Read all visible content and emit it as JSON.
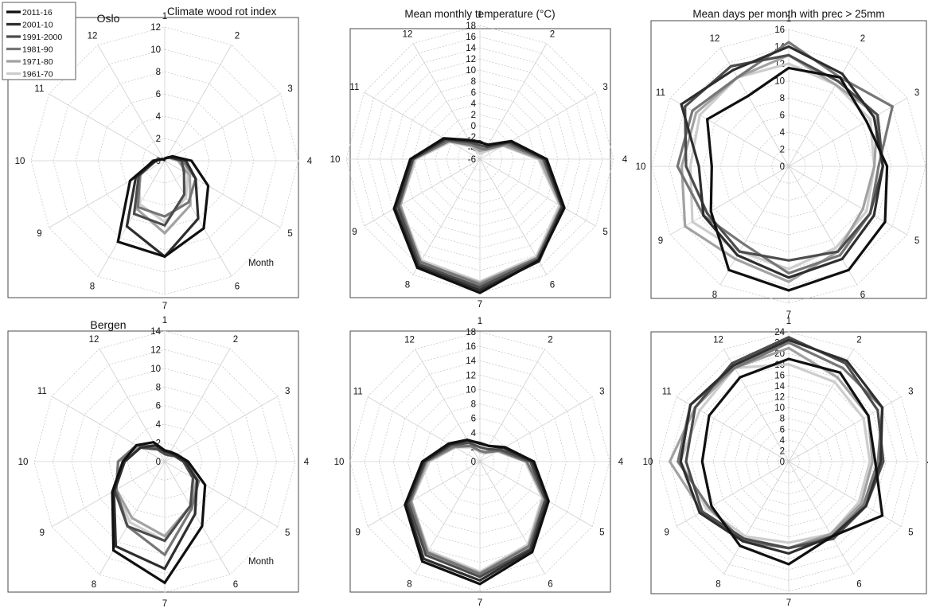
{
  "legend": [
    "2011-16",
    "2001-10",
    "1991-2000",
    "1981-90",
    "1971-80",
    "1961-70"
  ],
  "colors": [
    "#101010",
    "#2e2e2e",
    "#4c4c4c",
    "#767676",
    "#a2a2a2",
    "#cdcdcd"
  ],
  "month_axis_label": "Month",
  "chart_data": [
    {
      "type": "radar",
      "city": "Oslo",
      "title": "Climate wood rot index",
      "xlabel": "Month",
      "categories": [
        "1",
        "2",
        "3",
        "4",
        "5",
        "6",
        "7",
        "8",
        "9",
        "10",
        "11",
        "12"
      ],
      "rlim": [
        0,
        12
      ],
      "ticks": [
        0,
        2,
        4,
        6,
        8,
        10,
        12
      ],
      "grid": true,
      "series": [
        {
          "name": "2011-16",
          "values": [
            0.2,
            0.3,
            0.8,
            2.4,
            4.5,
            7.0,
            8.6,
            8.4,
            3.6,
            1.0,
            0.3,
            0.1
          ]
        },
        {
          "name": "2001-10",
          "values": [
            0.2,
            0.3,
            0.6,
            1.9,
            3.2,
            6.0,
            8.6,
            6.8,
            3.0,
            0.8,
            0.3,
            0.1
          ]
        },
        {
          "name": "1991-2000",
          "values": [
            0.2,
            0.3,
            0.6,
            1.5,
            2.0,
            3.5,
            5.8,
            5.5,
            2.7,
            0.9,
            0.3,
            0.1
          ]
        },
        {
          "name": "1981-90",
          "values": [
            0.2,
            0.3,
            0.6,
            1.6,
            3.2,
            4.3,
            5.0,
            4.8,
            2.6,
            1.1,
            0.3,
            0.1
          ]
        },
        {
          "name": "1971-80",
          "values": [
            0.2,
            0.3,
            0.5,
            1.2,
            2.6,
            4.6,
            6.5,
            5.0,
            2.5,
            0.8,
            0.3,
            0.1
          ]
        },
        {
          "name": "1961-70",
          "values": [
            0.2,
            0.3,
            0.5,
            1.2,
            2.4,
            3.8,
            5.5,
            4.5,
            2.6,
            0.8,
            0.3,
            0.1
          ]
        }
      ]
    },
    {
      "type": "radar",
      "city": "",
      "title": "Mean monthly temperature (°C)",
      "xlabel": "",
      "categories": [
        "1",
        "2",
        "3",
        "4",
        "5",
        "6",
        "7",
        "8",
        "9",
        "10",
        "11",
        "12"
      ],
      "rlim": [
        -6,
        18
      ],
      "ticks": [
        -6,
        -4,
        -2,
        0,
        2,
        4,
        6,
        8,
        10,
        12,
        14,
        16,
        18
      ],
      "grid": true,
      "series": [
        {
          "name": "2011-16",
          "values": [
            -3.0,
            -3.0,
            0.5,
            6.0,
            11.5,
            15.0,
            18.0,
            16.5,
            11.8,
            6.5,
            1.5,
            -2.0
          ]
        },
        {
          "name": "2001-10",
          "values": [
            -2.8,
            -3.2,
            0.3,
            5.8,
            11.2,
            15.2,
            17.5,
            16.2,
            11.5,
            6.3,
            1.3,
            -2.2
          ]
        },
        {
          "name": "1991-2000",
          "values": [
            -3.5,
            -3.5,
            0.0,
            5.5,
            11.0,
            14.8,
            17.0,
            15.8,
            11.0,
            6.0,
            1.0,
            -2.5
          ]
        },
        {
          "name": "1981-90",
          "values": [
            -4.0,
            -4.0,
            -0.5,
            5.3,
            11.0,
            14.5,
            16.5,
            15.3,
            10.8,
            6.0,
            0.5,
            -3.0
          ]
        },
        {
          "name": "1971-80",
          "values": [
            -4.5,
            -4.0,
            -1.0,
            4.8,
            10.8,
            14.5,
            16.2,
            15.5,
            10.5,
            5.8,
            0.5,
            -3.2
          ]
        },
        {
          "name": "1961-70",
          "values": [
            -5.0,
            -4.5,
            -1.2,
            4.5,
            10.5,
            14.2,
            16.0,
            15.0,
            10.5,
            5.5,
            0.2,
            -3.5
          ]
        }
      ]
    },
    {
      "type": "radar",
      "city": "",
      "title": "Mean days per month with prec > 25mm",
      "xlabel": "",
      "categories": [
        "1",
        "2",
        "3",
        "4",
        "5",
        "6",
        "7",
        "8",
        "9",
        "10",
        "11",
        "12"
      ],
      "rlim": [
        0,
        16
      ],
      "ticks": [
        0,
        2,
        4,
        6,
        8,
        10,
        12,
        14,
        16
      ],
      "grid": true,
      "series": [
        {
          "name": "2011-16",
          "values": [
            11.5,
            12.0,
            10.5,
            11.5,
            13.0,
            14.0,
            14.5,
            14.0,
            10.5,
            9.0,
            11.0,
            9.5
          ]
        },
        {
          "name": "2001-10",
          "values": [
            14.0,
            12.5,
            11.5,
            11.0,
            11.5,
            12.5,
            13.0,
            12.0,
            11.5,
            10.5,
            14.5,
            13.0
          ]
        },
        {
          "name": "1991-2000",
          "values": [
            13.0,
            11.5,
            12.0,
            11.0,
            11.0,
            11.5,
            11.0,
            11.5,
            11.0,
            12.0,
            14.0,
            13.5
          ]
        },
        {
          "name": "1981-90",
          "values": [
            14.5,
            12.0,
            14.0,
            10.5,
            11.0,
            12.0,
            12.5,
            10.5,
            11.5,
            13.0,
            13.0,
            12.0
          ]
        },
        {
          "name": "1971-80",
          "values": [
            13.0,
            11.0,
            12.0,
            10.0,
            10.0,
            11.5,
            13.5,
            12.5,
            14.0,
            12.5,
            12.5,
            12.0
          ]
        },
        {
          "name": "1961-70",
          "values": [
            12.0,
            11.0,
            11.0,
            10.0,
            10.5,
            11.0,
            12.0,
            11.5,
            13.0,
            11.5,
            12.0,
            12.0
          ]
        }
      ]
    },
    {
      "type": "radar",
      "city": "Bergen",
      "title": "",
      "xlabel": "Month",
      "categories": [
        "1",
        "2",
        "3",
        "4",
        "5",
        "6",
        "7",
        "8",
        "9",
        "10",
        "11",
        "12"
      ],
      "rlim": [
        0,
        14
      ],
      "ticks": [
        0,
        2,
        4,
        6,
        8,
        10,
        12,
        14
      ],
      "grid": true,
      "series": [
        {
          "name": "2011-16",
          "values": [
            1.2,
            1.2,
            1.5,
            2.5,
            5.0,
            8.0,
            13.0,
            11.0,
            6.5,
            4.5,
            3.5,
            2.4
          ]
        },
        {
          "name": "2001-10",
          "values": [
            1.1,
            1.1,
            1.3,
            2.2,
            4.0,
            6.5,
            11.5,
            10.5,
            6.3,
            4.3,
            3.0,
            2.0
          ]
        },
        {
          "name": "1991-2000",
          "values": [
            0.8,
            0.8,
            1.2,
            2.0,
            3.5,
            5.5,
            8.5,
            8.0,
            6.2,
            4.3,
            3.0,
            1.5
          ]
        },
        {
          "name": "1981-90",
          "values": [
            0.8,
            0.9,
            1.3,
            2.0,
            4.2,
            5.8,
            10.0,
            8.0,
            6.0,
            5.0,
            3.5,
            1.8
          ]
        },
        {
          "name": "1971-80",
          "values": [
            1.0,
            1.0,
            1.5,
            2.4,
            4.0,
            5.5,
            8.0,
            7.0,
            6.0,
            5.0,
            3.2,
            2.0
          ]
        },
        {
          "name": "1961-70",
          "values": [
            1.0,
            1.0,
            1.3,
            2.0,
            3.8,
            5.5,
            8.5,
            7.5,
            6.0,
            5.0,
            3.0,
            2.0
          ]
        }
      ]
    },
    {
      "type": "radar",
      "city": "",
      "title": "",
      "xlabel": "",
      "categories": [
        "1",
        "2",
        "3",
        "4",
        "5",
        "6",
        "7",
        "8",
        "9",
        "10",
        "11",
        "12"
      ],
      "rlim": [
        0,
        18
      ],
      "ticks": [
        0,
        2,
        4,
        6,
        8,
        10,
        12,
        14,
        16,
        18
      ],
      "grid": true,
      "series": [
        {
          "name": "2011-16",
          "values": [
            2.5,
            2.5,
            4.0,
            7.5,
            11.0,
            14.5,
            17.0,
            16.0,
            12.0,
            8.0,
            5.0,
            3.5
          ]
        },
        {
          "name": "2001-10",
          "values": [
            2.6,
            2.5,
            3.8,
            7.3,
            10.8,
            14.2,
            16.5,
            15.6,
            11.8,
            7.8,
            4.8,
            3.4
          ]
        },
        {
          "name": "1991-2000",
          "values": [
            2.0,
            2.0,
            3.3,
            7.0,
            10.5,
            14.0,
            16.0,
            15.0,
            11.5,
            7.6,
            4.6,
            3.0
          ]
        },
        {
          "name": "1981-90",
          "values": [
            1.5,
            1.5,
            3.0,
            6.5,
            10.5,
            13.6,
            15.6,
            14.6,
            11.2,
            7.5,
            4.2,
            2.5
          ]
        },
        {
          "name": "1971-80",
          "values": [
            1.5,
            1.5,
            3.0,
            6.5,
            10.2,
            13.5,
            15.5,
            14.5,
            11.0,
            7.3,
            4.0,
            2.5
          ]
        },
        {
          "name": "1961-70",
          "values": [
            1.3,
            1.3,
            2.8,
            6.3,
            10.0,
            13.3,
            15.3,
            14.3,
            11.0,
            7.0,
            4.0,
            2.3
          ]
        }
      ]
    },
    {
      "type": "radar",
      "city": "",
      "title": "",
      "xlabel": "",
      "categories": [
        "1",
        "2",
        "3",
        "4",
        "5",
        "6",
        "7",
        "8",
        "9",
        "10",
        "11",
        "12"
      ],
      "rlim": [
        0,
        24
      ],
      "ticks": [
        0,
        2,
        4,
        6,
        8,
        10,
        12,
        14,
        16,
        18,
        20,
        22,
        24
      ],
      "grid": true,
      "series": [
        {
          "name": "2011-16",
          "values": [
            19.0,
            19.0,
            17.0,
            16.0,
            20.0,
            16.0,
            19.0,
            18.0,
            16.5,
            16.0,
            17.0,
            18.0
          ]
        },
        {
          "name": "2001-10",
          "values": [
            22.5,
            21.5,
            20.0,
            17.0,
            16.5,
            16.0,
            17.0,
            17.0,
            19.0,
            20.0,
            21.0,
            20.5
          ]
        },
        {
          "name": "1991-2000",
          "values": [
            23.0,
            21.0,
            19.0,
            17.5,
            16.5,
            16.5,
            16.0,
            16.5,
            18.5,
            19.0,
            20.0,
            21.0
          ]
        },
        {
          "name": "1981-90",
          "values": [
            22.0,
            20.0,
            20.0,
            16.5,
            16.0,
            16.0,
            16.0,
            17.0,
            17.0,
            20.5,
            21.0,
            20.0
          ]
        },
        {
          "name": "1971-80",
          "values": [
            21.0,
            18.0,
            17.0,
            15.5,
            15.5,
            15.5,
            16.0,
            16.5,
            18.5,
            22.0,
            20.0,
            20.0
          ]
        },
        {
          "name": "1961-70",
          "values": [
            18.0,
            17.0,
            16.0,
            15.0,
            15.0,
            15.5,
            15.0,
            16.0,
            17.5,
            20.0,
            19.0,
            20.0
          ]
        }
      ]
    }
  ]
}
